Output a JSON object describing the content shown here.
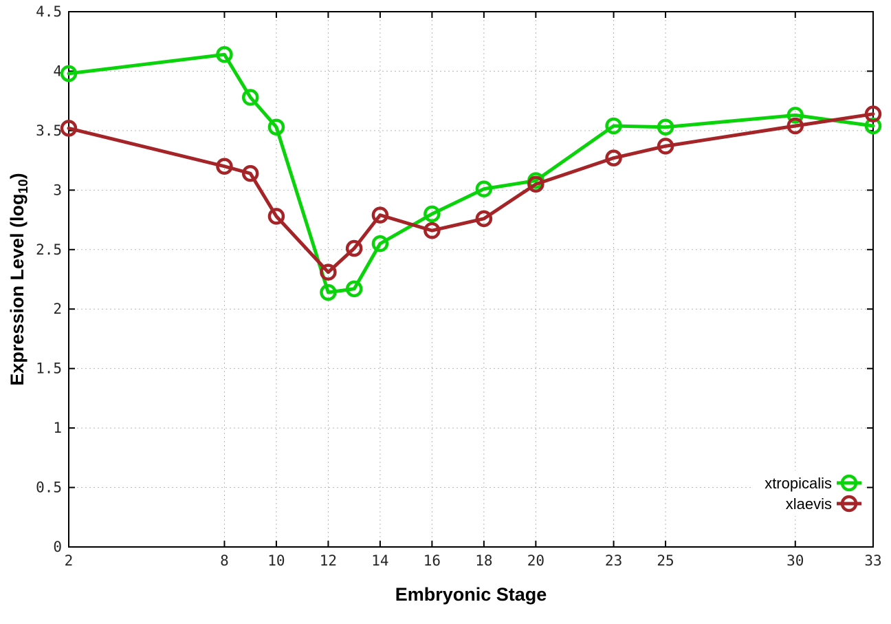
{
  "chart_data": {
    "type": "line",
    "title": "",
    "xlabel": "Embryonic Stage",
    "ylabel": "Expression Level (log10)",
    "ylabel_parts": {
      "main": "Expression Level (log",
      "sub": "10",
      "close": ")"
    },
    "xlim": [
      2,
      33
    ],
    "ylim": [
      0,
      4.5
    ],
    "x_ticks": [
      2,
      8,
      10,
      12,
      14,
      16,
      18,
      20,
      23,
      25,
      30,
      33
    ],
    "y_ticks": [
      0,
      0.5,
      1,
      1.5,
      2,
      2.5,
      3,
      3.5,
      4,
      4.5
    ],
    "grid": true,
    "grid_style": "dotted",
    "legend_position": "bottom-right-inside",
    "x": [
      2,
      8,
      9,
      10,
      12,
      13,
      14,
      16,
      18,
      20,
      23,
      25,
      30,
      33
    ],
    "series": [
      {
        "name": "xtropicalis",
        "color": "#0bd30b",
        "marker": "open-circle",
        "values": [
          3.98,
          4.14,
          3.78,
          3.53,
          2.14,
          2.17,
          2.55,
          2.8,
          3.01,
          3.08,
          3.54,
          3.53,
          3.63,
          3.54
        ]
      },
      {
        "name": "xlaevis",
        "color": "#a42428",
        "marker": "open-circle",
        "values": [
          3.52,
          3.2,
          3.14,
          2.78,
          2.31,
          2.51,
          2.79,
          2.66,
          2.76,
          3.05,
          3.27,
          3.37,
          3.54,
          3.64
        ]
      }
    ],
    "colors": {
      "border": "#000000",
      "grid": "#b5b5b5",
      "background": "#ffffff"
    }
  }
}
